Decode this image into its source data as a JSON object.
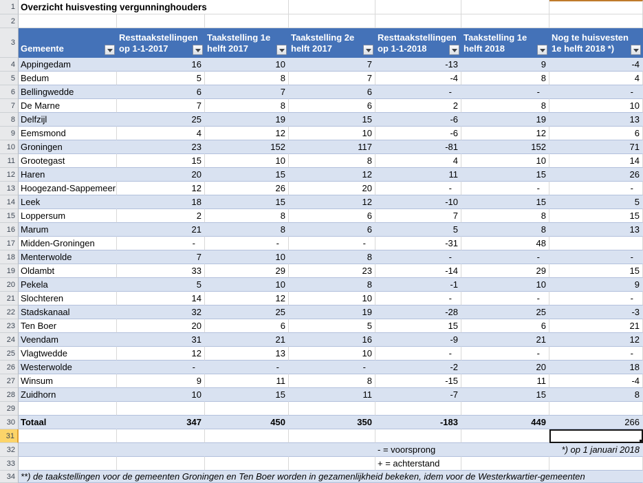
{
  "title": "Overzicht huisvesting vergunninghouders",
  "header": {
    "columns": [
      {
        "id": "gemeente",
        "title": "Gemeente",
        "subtitle": ""
      },
      {
        "id": "resttaak-1-1-2017",
        "title": "Resttaakstellingen",
        "subtitle": "op 1-1-2017"
      },
      {
        "id": "taak-1e-helft-2017",
        "title": "Taakstelling 1e",
        "subtitle": "helft 2017"
      },
      {
        "id": "taak-2e-helft-2017",
        "title": "Taakstelling 2e",
        "subtitle": "helft 2017"
      },
      {
        "id": "resttaak-1-1-2018",
        "title": "Resttaakstellingen",
        "subtitle": "op 1-1-2018"
      },
      {
        "id": "taak-1e-helft-2018",
        "title": "Taakstelling 1e",
        "subtitle": "helft 2018"
      },
      {
        "id": "nog-te-huisvesten-1e-helft-2018",
        "title": "Nog te huisvesten",
        "subtitle": "1e helft 2018 *)"
      }
    ]
  },
  "rows": [
    {
      "n": 4,
      "name": "Appingedam",
      "values": [
        "16",
        "10",
        "7",
        "-13",
        "9",
        "-4"
      ]
    },
    {
      "n": 5,
      "name": "Bedum",
      "values": [
        "5",
        "8",
        "7",
        "-4",
        "8",
        "4"
      ]
    },
    {
      "n": 6,
      "name": "Bellingwedde",
      "values": [
        "6",
        "7",
        "6",
        "-",
        "-",
        "-"
      ]
    },
    {
      "n": 7,
      "name": "De Marne",
      "values": [
        "7",
        "8",
        "6",
        "2",
        "8",
        "10"
      ]
    },
    {
      "n": 8,
      "name": "Delfzijl",
      "values": [
        "25",
        "19",
        "15",
        "-6",
        "19",
        "13"
      ]
    },
    {
      "n": 9,
      "name": "Eemsmond",
      "values": [
        "4",
        "12",
        "10",
        "-6",
        "12",
        "6"
      ]
    },
    {
      "n": 10,
      "name": "Groningen",
      "values": [
        "23",
        "152",
        "117",
        "-81",
        "152",
        "71"
      ]
    },
    {
      "n": 11,
      "name": "Grootegast",
      "values": [
        "15",
        "10",
        "8",
        "4",
        "10",
        "14"
      ]
    },
    {
      "n": 12,
      "name": "Haren",
      "values": [
        "20",
        "15",
        "12",
        "11",
        "15",
        "26"
      ]
    },
    {
      "n": 13,
      "name": "Hoogezand-Sappemeer",
      "values": [
        "12",
        "26",
        "20",
        "-",
        "-",
        "-"
      ]
    },
    {
      "n": 14,
      "name": "Leek",
      "values": [
        "18",
        "15",
        "12",
        "-10",
        "15",
        "5"
      ]
    },
    {
      "n": 15,
      "name": "Loppersum",
      "values": [
        "2",
        "8",
        "6",
        "7",
        "8",
        "15"
      ]
    },
    {
      "n": 16,
      "name": "Marum",
      "values": [
        "21",
        "8",
        "6",
        "5",
        "8",
        "13"
      ]
    },
    {
      "n": 17,
      "name": "Midden-Groningen",
      "values": [
        "-",
        "-",
        "-",
        "-31",
        "48",
        ""
      ]
    },
    {
      "n": 18,
      "name": "Menterwolde",
      "values": [
        "7",
        "10",
        "8",
        "-",
        "-",
        "-"
      ]
    },
    {
      "n": 19,
      "name": "Oldambt",
      "values": [
        "33",
        "29",
        "23",
        "-14",
        "29",
        "15"
      ]
    },
    {
      "n": 20,
      "name": "Pekela",
      "values": [
        "5",
        "10",
        "8",
        "-1",
        "10",
        "9"
      ]
    },
    {
      "n": 21,
      "name": "Slochteren",
      "values": [
        "14",
        "12",
        "10",
        "-",
        "-",
        "-"
      ]
    },
    {
      "n": 22,
      "name": "Stadskanaal",
      "values": [
        "32",
        "25",
        "19",
        "-28",
        "25",
        "-3"
      ]
    },
    {
      "n": 23,
      "name": "Ten Boer",
      "values": [
        "20",
        "6",
        "5",
        "15",
        "6",
        "21"
      ]
    },
    {
      "n": 24,
      "name": "Veendam",
      "values": [
        "31",
        "21",
        "16",
        "-9",
        "21",
        "12"
      ]
    },
    {
      "n": 25,
      "name": "Vlagtwedde",
      "values": [
        "12",
        "13",
        "10",
        "-",
        "-",
        "-"
      ]
    },
    {
      "n": 26,
      "name": "Westerwolde",
      "values": [
        "-",
        "-",
        "-",
        "-2",
        "20",
        "18"
      ]
    },
    {
      "n": 27,
      "name": "Winsum",
      "values": [
        "9",
        "11",
        "8",
        "-15",
        "11",
        "-4"
      ]
    },
    {
      "n": 28,
      "name": "Zuidhorn",
      "values": [
        "10",
        "15",
        "11",
        "-7",
        "15",
        "8"
      ]
    }
  ],
  "total": {
    "n": 30,
    "label": "Totaal",
    "values": [
      "347",
      "450",
      "350",
      "-183",
      "449",
      "266"
    ],
    "regular_index": 5
  },
  "selection": {
    "row": 31,
    "col_index": 6
  },
  "legend": {
    "minus": "- = voorsprong",
    "plus": "+ = achterstand"
  },
  "footnote_right": "*) op 1 januari 2018",
  "footnote_bottom": "**) de taakstellingen voor de gemeenten Groningen en Ten Boer worden in gezamenlijkheid bekeken, idem voor de Westerkwartier-gemeenten",
  "gutter": {
    "rows": [
      1,
      2,
      3,
      4,
      5,
      6,
      7,
      8,
      9,
      10,
      11,
      12,
      13,
      14,
      15,
      16,
      17,
      18,
      19,
      20,
      21,
      22,
      23,
      24,
      25,
      26,
      27,
      28,
      29,
      30,
      31,
      32,
      33,
      34
    ]
  },
  "colors": {
    "header_bg": "#4472b8",
    "band_bg": "#d9e2f1",
    "row_border": "#b2c0dc",
    "gridline": "#d8d8d8",
    "highlight_bg": "#fcd469",
    "highlight_border": "#e09f33",
    "selection_border": "#141414",
    "orange_accent": "#bf7b2b",
    "header_text": "#ffffff"
  }
}
